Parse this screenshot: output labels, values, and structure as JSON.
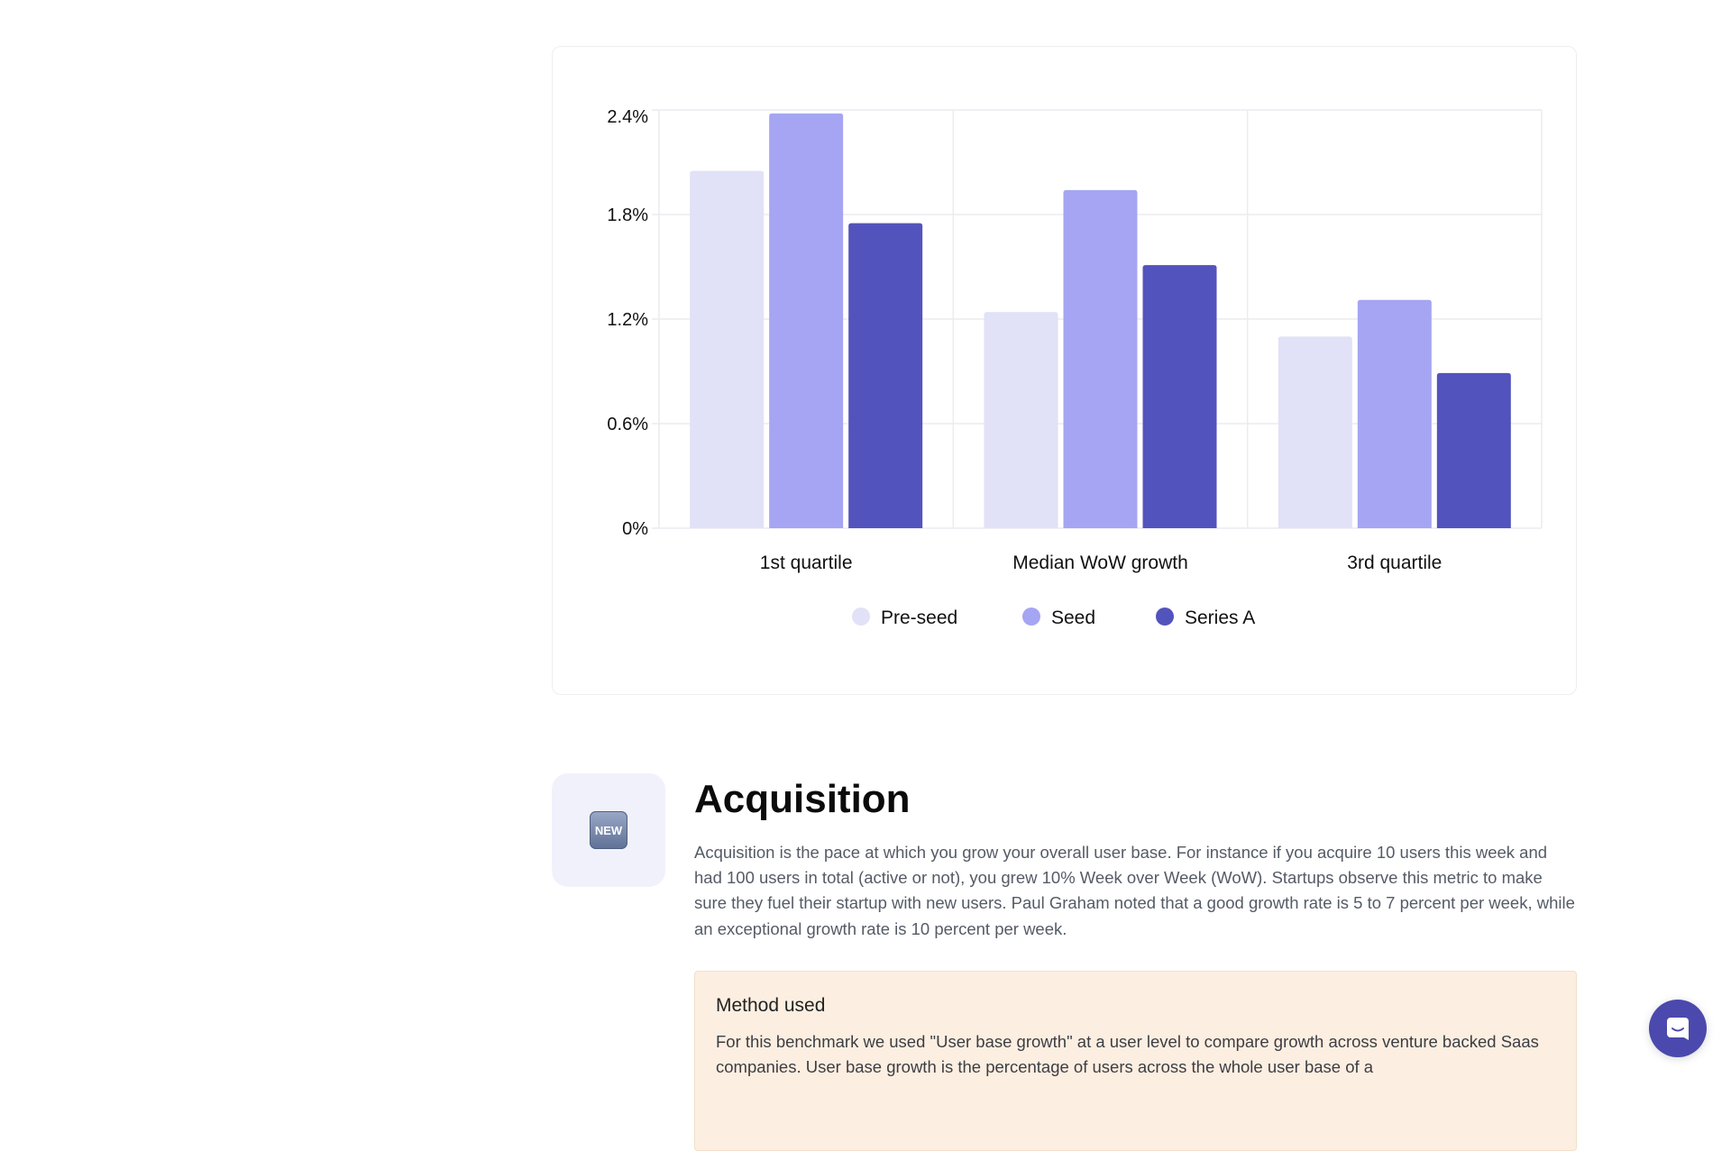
{
  "chart_data": {
    "type": "bar",
    "categories": [
      "1st quartile",
      "Median WoW growth",
      "3rd quartile"
    ],
    "series": [
      {
        "name": "Pre-seed",
        "color": "#e1e1f7",
        "values": [
          2.05,
          1.24,
          1.1
        ]
      },
      {
        "name": "Seed",
        "color": "#a5a5f3",
        "values": [
          2.38,
          1.94,
          1.31
        ]
      },
      {
        "name": "Series A",
        "color": "#5353bd",
        "values": [
          1.75,
          1.51,
          0.89
        ]
      }
    ],
    "yticks": [
      0,
      0.6,
      1.2,
      1.8,
      2.4
    ],
    "ytick_labels": [
      "0%",
      "0.6%",
      "1.2%",
      "1.8%",
      "2.4%"
    ],
    "ylim": [
      0,
      2.4
    ],
    "title": "",
    "xlabel": "",
    "ylabel": "",
    "grid": true,
    "legend": "bottom-center"
  },
  "section": {
    "icon": "new-button-emoji",
    "icon_text": "NEW",
    "title": "Acquisition",
    "description": "Acquisition is the pace at which you grow your overall user base. For instance if you acquire 10 users this week and had 100 users in total (active or not), you grew 10% Week over Week (WoW). Startups observe this metric to make sure they fuel their startup with new users. Paul Graham noted that a good growth rate is 5 to 7 percent per week, while an exceptional growth rate is 10 percent per week.",
    "method_title": "Method used",
    "method_text": "For this benchmark we used \"User base growth\" at a user level to compare growth across venture backed Saas companies. User base growth is the percentage of users across the whole user base of a"
  },
  "chat": {
    "icon": "chat-icon",
    "color": "#4b49ad"
  }
}
